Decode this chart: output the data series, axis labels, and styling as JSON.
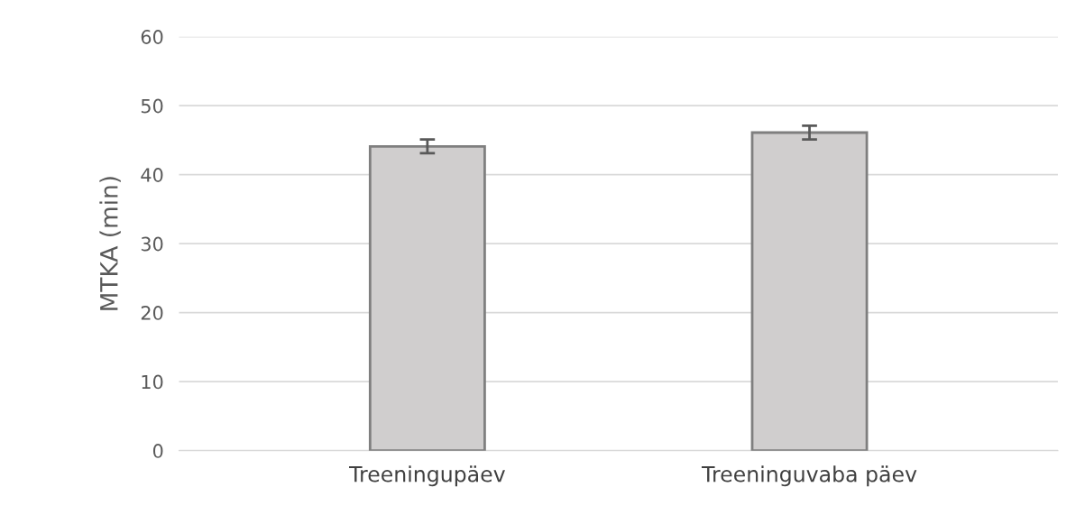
{
  "chart_data": {
    "type": "bar",
    "ylabel": "MTKA (min)",
    "categories": [
      "Treeningupäev",
      "Treeninguvaba päev"
    ],
    "values": [
      44.1,
      46.1
    ],
    "errors": [
      1.0,
      1.0
    ],
    "color": "#d0cece",
    "ylim": [
      0,
      60
    ],
    "yticks": [
      0,
      10,
      20,
      30,
      40,
      50,
      60
    ],
    "grid": "y"
  }
}
